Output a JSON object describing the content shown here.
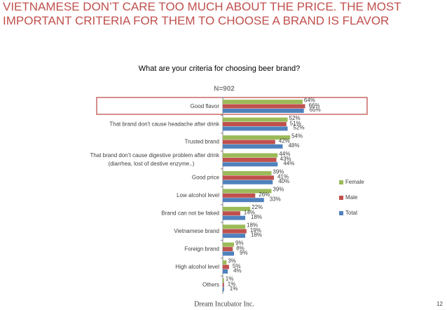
{
  "chart_data": {
    "type": "hbar",
    "title": "VIETNAMESE DON’T CARE TOO MUCH ABOUT THE PRICE. THE MOST IMPORTANT CRITERIA  FOR THEM TO CHOOSE A BRAND IS FLAVOR",
    "subtitle": "What are your criteria for choosing beer brand?",
    "annotation": "N=902",
    "categories": [
      "Good flavor",
      "That brand don't cause headache after drink",
      "Trusted brand",
      [
        "That brand don’t cause digestive problem after drink",
        "(diarrhea, lost of destive enzyme..)"
      ],
      "Good price",
      "Low alcohol level",
      "Brand can not be faked",
      "Vietnamese brand",
      "Foreign brand",
      "High alcohol level",
      "Others"
    ],
    "series": [
      {
        "name": "Female",
        "color": "#9bbb59",
        "values": [
          64,
          52,
          54,
          44,
          39,
          39,
          22,
          18,
          9,
          3,
          1
        ],
        "value_labels": [
          "64%",
          "52%",
          "54%",
          "44%",
          "39%",
          "39%",
          "22%",
          "18%",
          "9%",
          "3%",
          "1%"
        ]
      },
      {
        "name": "Male",
        "color": "#c0504d",
        "values": [
          66,
          51,
          42,
          43,
          41,
          26,
          14,
          19,
          8,
          5,
          1
        ],
        "value_labels": [
          "66%",
          "51%",
          "42%",
          "43%",
          "41%",
          "26%",
          "14%",
          "19%",
          "8%",
          "5%",
          "1%"
        ]
      },
      {
        "name": "Total",
        "color": "#4f81bd",
        "values": [
          65,
          52,
          48,
          44,
          40,
          33,
          18,
          18,
          9,
          4,
          1
        ],
        "value_labels": [
          "65%",
          "52%",
          "48%",
          "44%",
          "40%",
          "33%",
          "18%",
          "18%",
          "9%",
          "4%",
          "1%"
        ]
      }
    ],
    "xlim": [
      0,
      100
    ],
    "legend": "right"
  },
  "footer": "Dream Incubator Inc.",
  "page_number": "12"
}
